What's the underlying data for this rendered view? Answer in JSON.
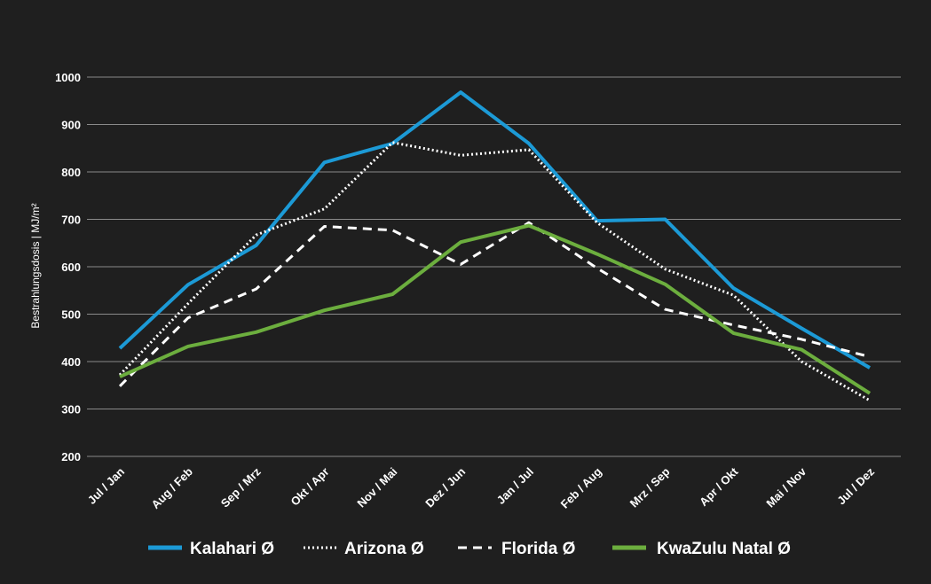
{
  "chart_data": {
    "type": "line",
    "ylabel": "Bestrahlungsdosis | MJ/m²",
    "ylim": [
      200,
      1000
    ],
    "yticks": [
      200,
      300,
      400,
      500,
      600,
      700,
      800,
      900,
      1000
    ],
    "grid": true,
    "legend_position": "bottom",
    "categories": [
      "Jul / Jan",
      "Aug / Feb",
      "Sep / Mrz",
      "Okt / Apr",
      "Nov / Mai",
      "Dez / Jun",
      "Jan / Jul",
      "Feb / Aug",
      "Mrz / Sep",
      "Apr / Okt",
      "Mai / Nov",
      "Jul / Dez"
    ],
    "series": [
      {
        "name": "Kalahari Ø",
        "color": "#1c9ad6",
        "style": "solid",
        "values": [
          428,
          562,
          645,
          820,
          860,
          968,
          860,
          697,
          700,
          555,
          470,
          387
        ]
      },
      {
        "name": "Arizona Ø",
        "color": "#ffffff",
        "style": "dotted",
        "values": [
          372,
          522,
          667,
          722,
          862,
          835,
          847,
          693,
          595,
          540,
          400,
          318
        ]
      },
      {
        "name": "Florida Ø",
        "color": "#ffffff",
        "style": "dashed",
        "values": [
          348,
          492,
          553,
          685,
          677,
          605,
          693,
          597,
          510,
          477,
          447,
          410
        ]
      },
      {
        "name": "KwaZulu Natal Ø",
        "color": "#6cae3e",
        "style": "solid",
        "values": [
          368,
          432,
          462,
          508,
          542,
          652,
          687,
          627,
          563,
          460,
          425,
          333
        ]
      }
    ]
  }
}
